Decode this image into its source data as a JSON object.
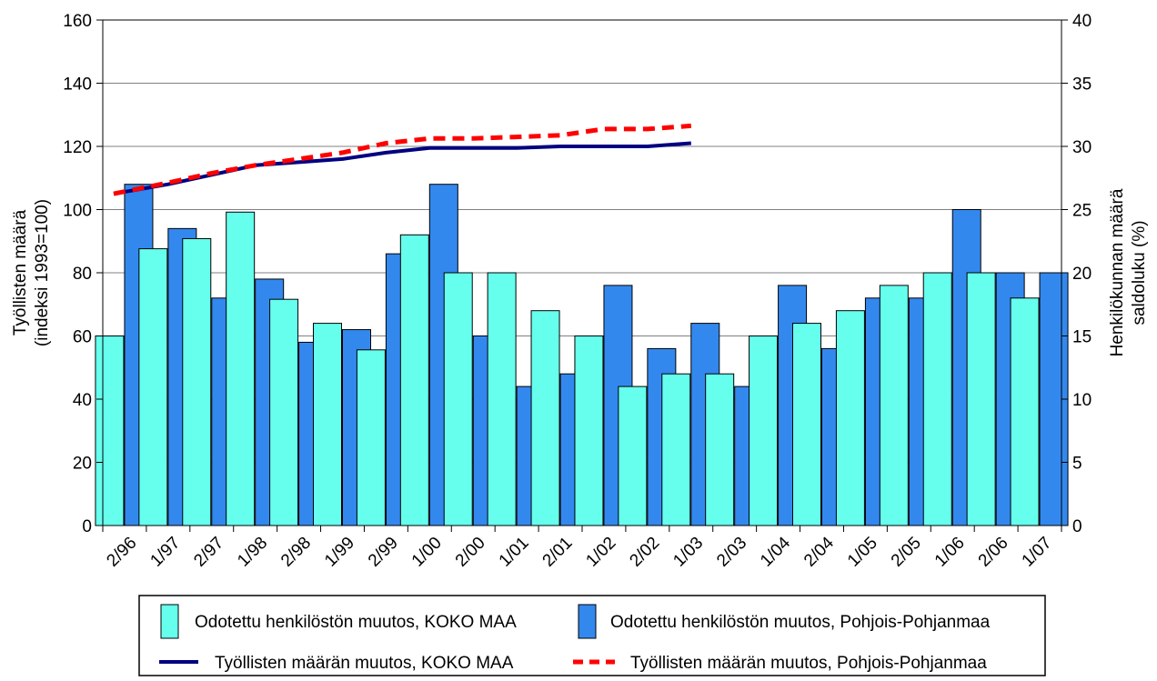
{
  "chart_data": {
    "type": "bar",
    "categories": [
      "2/96",
      "1/97",
      "2/97",
      "1/98",
      "2/98",
      "1/99",
      "2/99",
      "1/00",
      "2/00",
      "1/01",
      "2/01",
      "1/02",
      "2/02",
      "1/03",
      "2/03",
      "1/04",
      "2/04",
      "1/05",
      "2/05",
      "1/06",
      "2/06",
      "1/07"
    ],
    "series": [
      {
        "name": "Odotettu henkilöstön muutos, KOKO MAA",
        "type": "bar",
        "axis": "right",
        "color": "#66FFEE",
        "values": [
          15,
          21.9,
          22.7,
          24.8,
          17.9,
          16,
          13.9,
          23,
          20,
          20,
          17,
          15,
          11,
          12,
          12,
          15,
          16,
          17,
          19,
          20,
          20,
          18
        ]
      },
      {
        "name": "Odotettu henkilöstön muutos, Pohjois-Pohjanmaa",
        "type": "bar",
        "axis": "right",
        "color": "#3388EE",
        "values": [
          27,
          23.5,
          18,
          19.5,
          14.5,
          15.5,
          21.5,
          27,
          15,
          11,
          12,
          19,
          14,
          16,
          11,
          19,
          14,
          18,
          18,
          25,
          20,
          20
        ]
      },
      {
        "name": "Työllisten määrän muutos, KOKO MAA",
        "type": "line",
        "axis": "left",
        "color": "#000080",
        "values": [
          105,
          108,
          111,
          114,
          115,
          116,
          118,
          119.5,
          119.5,
          119.5,
          120,
          120,
          120,
          121,
          null,
          null,
          null,
          null,
          null,
          null,
          null,
          null
        ]
      },
      {
        "name": "Työllisten määrän muutos, Pohjois-Pohjanmaa",
        "type": "line",
        "axis": "left",
        "color": "#FF0000",
        "dashed": true,
        "values": [
          105,
          108.5,
          111.5,
          114,
          116,
          118,
          121,
          122.5,
          122.5,
          123,
          123.5,
          125.5,
          125.5,
          126.5,
          null,
          null,
          null,
          null,
          null,
          null,
          null,
          null
        ]
      }
    ],
    "y_left": {
      "label_line1": "Työllisten määrä",
      "label_line2": "(indeksi 1993=100)",
      "min": 0,
      "max": 160,
      "step": 20,
      "ticks": [
        "0",
        "20",
        "40",
        "60",
        "80",
        "100",
        "120",
        "140",
        "160"
      ]
    },
    "y_right": {
      "label_line1": "Henkilökunnan määrä",
      "label_line2": "saldoluku (%)",
      "min": 0,
      "max": 40,
      "step": 5,
      "ticks": [
        "0",
        "5",
        "10",
        "15",
        "20",
        "25",
        "30",
        "35",
        "40"
      ]
    },
    "grid": true,
    "legend_position": "bottom"
  }
}
